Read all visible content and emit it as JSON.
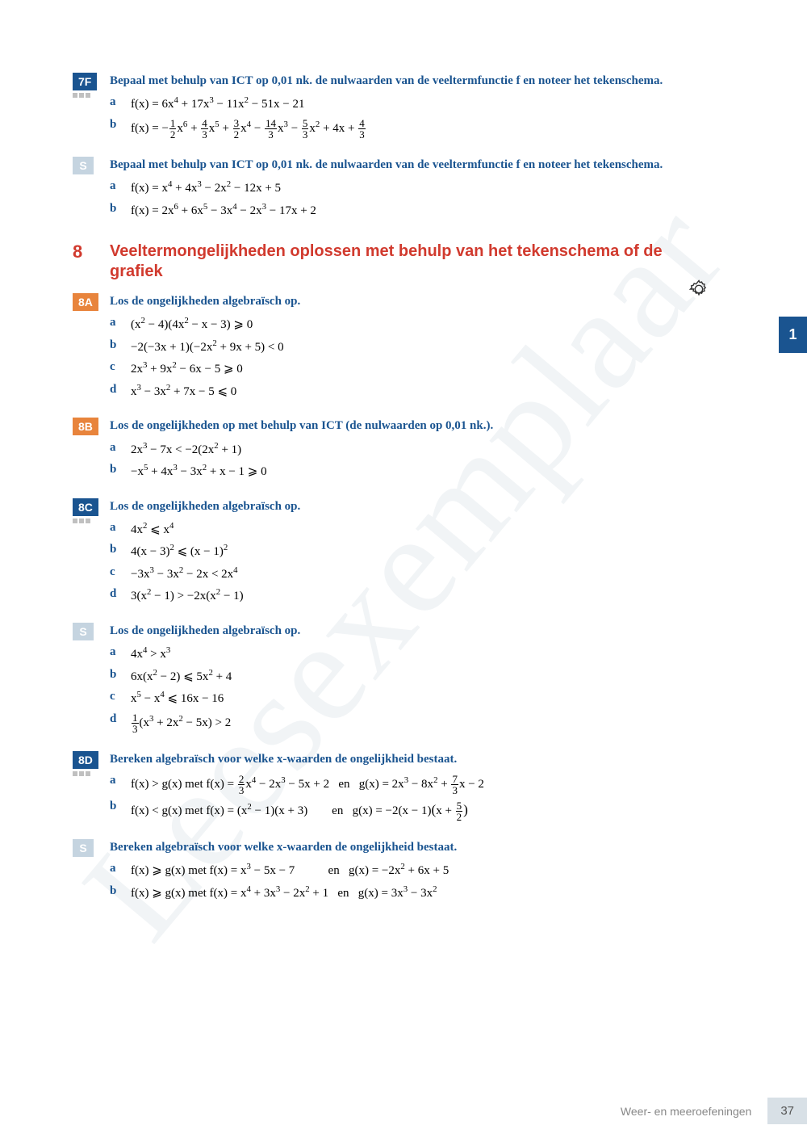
{
  "watermark": "Leesexemplaar",
  "side_tab": "1",
  "colors": {
    "blue": "#1a5490",
    "orange": "#e8843c",
    "light": "#c5d4e0",
    "red": "#d13a2e"
  },
  "blocks": [
    {
      "tag": "7F",
      "tag_style": "blue",
      "dots": true,
      "prompt": "Bepaal met behulp van ICT op 0,01 nk. de nulwaarden van de veeltermfunctie f en noteer het tekenschema.",
      "items": [
        {
          "l": "a",
          "html": "f(x) = 6x<sup>4</sup> + 17x<sup>3</sup> − 11x<sup>2</sup> − 51x − 21"
        },
        {
          "l": "b",
          "html": "f(x) = −<span class='frac'><span class='n'>1</span><span class='d'>2</span></span>x<sup>6</sup> + <span class='frac'><span class='n'>4</span><span class='d'>3</span></span>x<sup>5</sup> + <span class='frac'><span class='n'>3</span><span class='d'>2</span></span>x<sup>4</sup> − <span class='frac'><span class='n'>14</span><span class='d'>3</span></span>x<sup>3</sup> − <span class='frac'><span class='n'>5</span><span class='d'>3</span></span>x<sup>2</sup> + 4x + <span class='frac'><span class='n'>4</span><span class='d'>3</span></span>"
        }
      ]
    },
    {
      "tag": "S",
      "tag_style": "light",
      "prompt": "Bepaal met behulp van ICT op 0,01 nk. de nulwaarden van de veeltermfunctie f en noteer het tekenschema.",
      "items": [
        {
          "l": "a",
          "html": "f(x) = x<sup>4</sup> + 4x<sup>3</sup> − 2x<sup>2</sup> − 12x + 5"
        },
        {
          "l": "b",
          "html": "f(x) = 2x<sup>6</sup> + 6x<sup>5</sup> − 3x<sup>4</sup> − 2x<sup>3</sup> − 17x + 2"
        }
      ]
    }
  ],
  "section": {
    "num": "8",
    "title": "Veeltermongelijkheden oplossen met behulp van het tekenschema of de grafiek"
  },
  "blocks2": [
    {
      "tag": "8A",
      "tag_style": "orange",
      "prompt": "Los de ongelijkheden algebraïsch op.",
      "items": [
        {
          "l": "a",
          "html": "(x<sup>2</sup> − 4)(4x<sup>2</sup> − x − 3) ⩾ 0"
        },
        {
          "l": "b",
          "html": "−2(−3x + 1)(−2x<sup>2</sup> + 9x + 5) < 0"
        },
        {
          "l": "c",
          "html": "2x<sup>3</sup> + 9x<sup>2</sup> − 6x − 5 ⩾ 0"
        },
        {
          "l": "d",
          "html": "x<sup>3</sup> − 3x<sup>2</sup> + 7x − 5 ⩽ 0"
        }
      ]
    },
    {
      "tag": "8B",
      "tag_style": "orange",
      "prompt": "Los de ongelijkheden op met behulp van ICT (de nulwaarden op 0,01 nk.).",
      "items": [
        {
          "l": "a",
          "html": "2x<sup>3</sup> − 7x < −2(2x<sup>2</sup> + 1)"
        },
        {
          "l": "b",
          "html": "−x<sup>5</sup> + 4x<sup>3</sup> − 3x<sup>2</sup> + x − 1 ⩾ 0"
        }
      ]
    },
    {
      "tag": "8C",
      "tag_style": "blue",
      "dots": true,
      "prompt": "Los de ongelijkheden algebraïsch op.",
      "items": [
        {
          "l": "a",
          "html": "4x<sup>2</sup> ⩽ x<sup>4</sup>"
        },
        {
          "l": "b",
          "html": "4(x − 3)<sup>2</sup> ⩽ (x − 1)<sup>2</sup>"
        },
        {
          "l": "c",
          "html": "−3x<sup>3</sup> − 3x<sup>2</sup> − 2x < 2x<sup>4</sup>"
        },
        {
          "l": "d",
          "html": "3(x<sup>2</sup> − 1) > −2x(x<sup>2</sup> − 1)"
        }
      ]
    },
    {
      "tag": "S",
      "tag_style": "light",
      "prompt": "Los de ongelijkheden algebraïsch op.",
      "items": [
        {
          "l": "a",
          "html": "4x<sup>4</sup> > x<sup>3</sup>"
        },
        {
          "l": "b",
          "html": "6x(x<sup>2</sup> − 2) ⩽ 5x<sup>2</sup> + 4"
        },
        {
          "l": "c",
          "html": "x<sup>5</sup> − x<sup>4</sup> ⩽ 16x − 16"
        },
        {
          "l": "d",
          "html": "<span class='frac'><span class='n'>1</span><span class='d'>3</span></span>(x<sup>3</sup> + 2x<sup>2</sup> − 5x) > 2"
        }
      ]
    },
    {
      "tag": "8D",
      "tag_style": "blue",
      "dots": true,
      "prompt": "Bereken algebraïsch voor welke x-waarden de ongelijkheid bestaat.",
      "items": [
        {
          "l": "a",
          "html": "f(x) > g(x) met f(x) = <span class='frac'><span class='n'>2</span><span class='d'>3</span></span>x<sup>4</sup> − 2x<sup>3</sup> − 5x + 2 &nbsp; en &nbsp; g(x) = 2x<sup>3</sup> − 8x<sup>2</sup> + <span class='frac'><span class='n'>7</span><span class='d'>3</span></span>x − 2"
        },
        {
          "l": "b",
          "html": "f(x) < g(x) met f(x) = (x<sup>2</sup> − 1)(x + 3) &nbsp;&nbsp;&nbsp;&nbsp;&nbsp;&nbsp; en &nbsp; g(x) = −2(x − 1)<span style='font-size:1.15em'>(</span>x + <span class='frac'><span class='n'>5</span><span class='d'>2</span></span><span style='font-size:1.15em'>)</span>"
        }
      ]
    },
    {
      "tag": "S",
      "tag_style": "light",
      "prompt": "Bereken algebraïsch voor welke x-waarden de ongelijkheid bestaat.",
      "items": [
        {
          "l": "a",
          "html": "f(x) ⩾ g(x) met f(x) = x<sup>3</sup> − 5x − 7 &nbsp;&nbsp;&nbsp;&nbsp;&nbsp;&nbsp;&nbsp;&nbsp;&nbsp; en &nbsp; g(x) = −2x<sup>2</sup> + 6x + 5"
        },
        {
          "l": "b",
          "html": "f(x) ⩾ g(x) met f(x) = x<sup>4</sup> + 3x<sup>3</sup> − 2x<sup>2</sup> + 1 &nbsp; en &nbsp; g(x) = 3x<sup>3</sup> − 3x<sup>2</sup>"
        }
      ]
    }
  ],
  "footer": {
    "text": "Weer- en meeroefeningen",
    "page": "37"
  }
}
